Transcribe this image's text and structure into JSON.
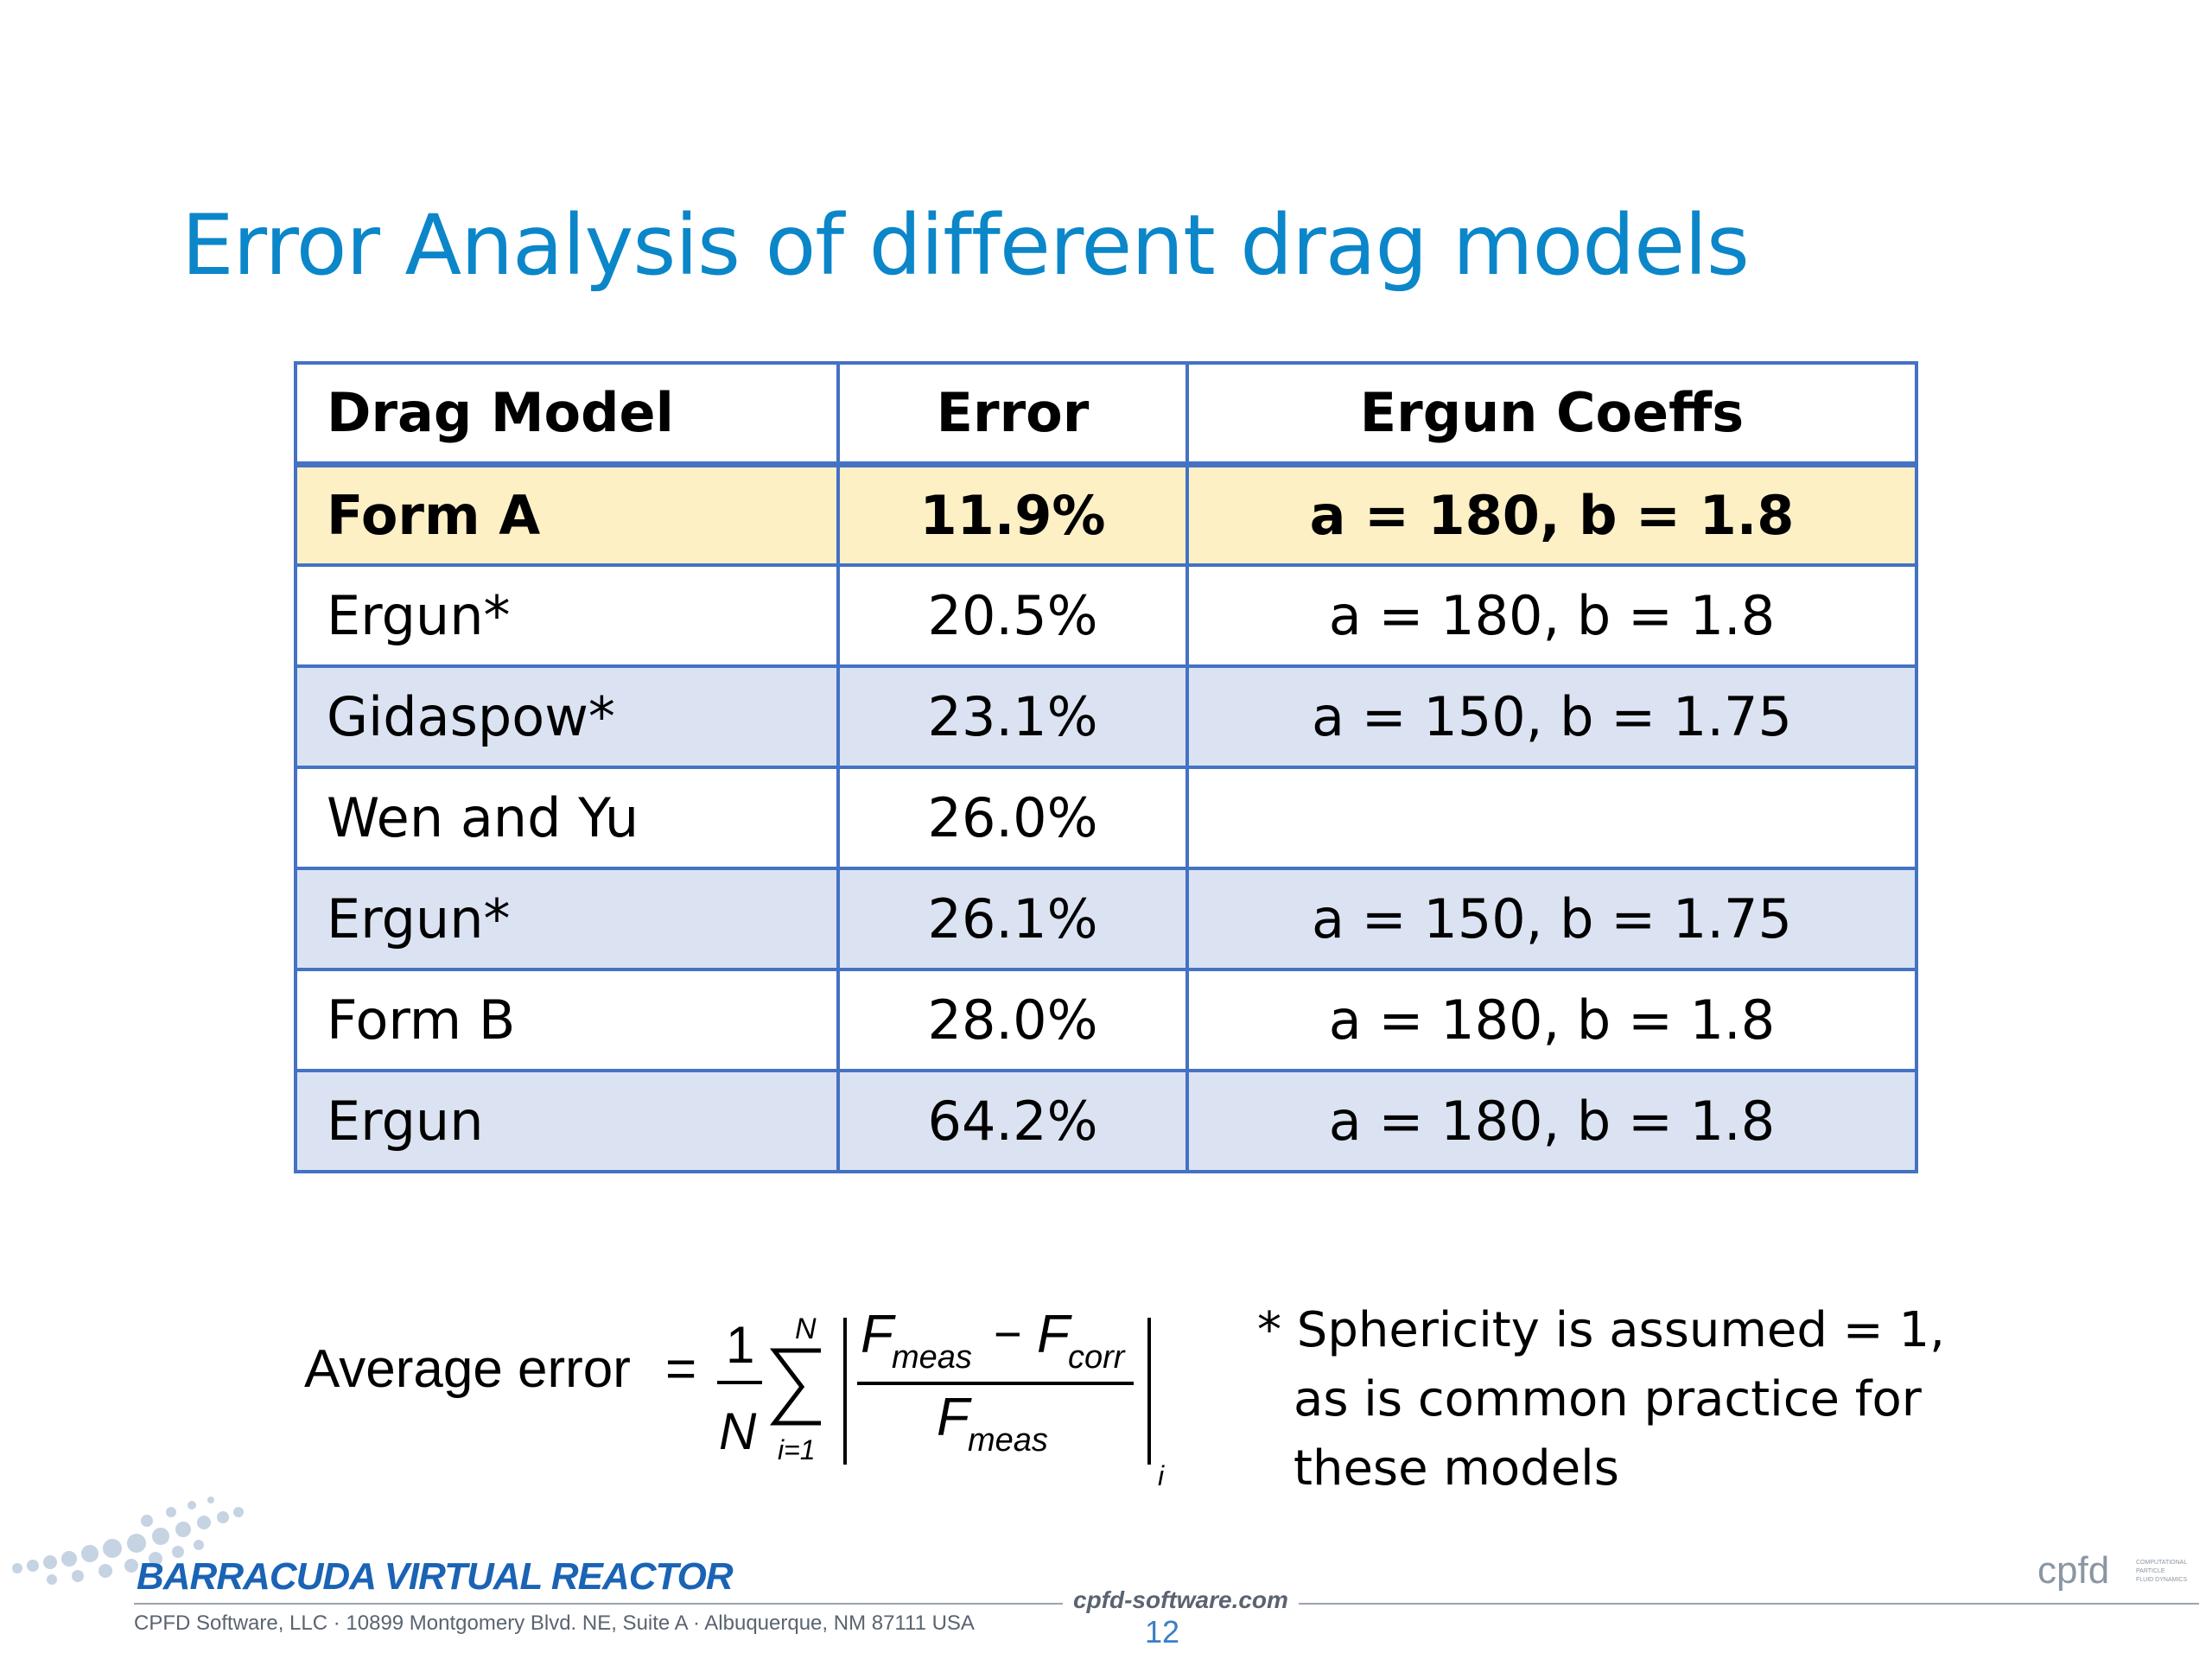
{
  "slide": {
    "title": "Error Analysis of different drag models",
    "page_number": "12"
  },
  "table": {
    "headers": [
      "Drag Model",
      "Error",
      "Ergun Coeffs"
    ],
    "rows": [
      {
        "model": "Form A",
        "error": "11.9%",
        "coeffs": "a = 180, b = 1.8"
      },
      {
        "model": "Ergun*",
        "error": "20.5%",
        "coeffs": "a = 180, b = 1.8"
      },
      {
        "model": "Gidaspow*",
        "error": "23.1%",
        "coeffs": "a = 150, b = 1.75"
      },
      {
        "model": "Wen and Yu",
        "error": "26.0%",
        "coeffs": ""
      },
      {
        "model": "Ergun*",
        "error": "26.1%",
        "coeffs": "a = 150, b = 1.75"
      },
      {
        "model": "Form B",
        "error": "28.0%",
        "coeffs": "a = 180, b = 1.8"
      },
      {
        "model": "Ergun",
        "error": "64.2%",
        "coeffs": "a = 180, b = 1.8"
      }
    ]
  },
  "formula": {
    "label": "Average error",
    "equals": "=",
    "one": "1",
    "N": "N",
    "sum_top": "N",
    "sum_bottom": "i=1",
    "F": "F",
    "meas": "meas",
    "corr": "corr",
    "minus": "−",
    "index": "i"
  },
  "note": {
    "line1": "* Sphericity is assumed = 1,",
    "line2": "as is common practice for",
    "line3": "these models"
  },
  "footer": {
    "brand": "BARRACUDA VIRTUAL REACTOR",
    "address": "CPFD Software, LLC · 10899 Montgomery Blvd. NE, Suite A · Albuquerque, NM 87111 USA",
    "website": "cpfd-software.com",
    "logo_text": "cpfd",
    "logo_tagline": "COMPUTATIONAL PARTICLE FLUID DYNAMICS"
  },
  "colors": {
    "title": "#0b86c9",
    "table_border": "#4472c4",
    "highlight_row": "#fdf0c5",
    "banded_row": "#dbe3f2",
    "brand": "#1a63b5"
  }
}
